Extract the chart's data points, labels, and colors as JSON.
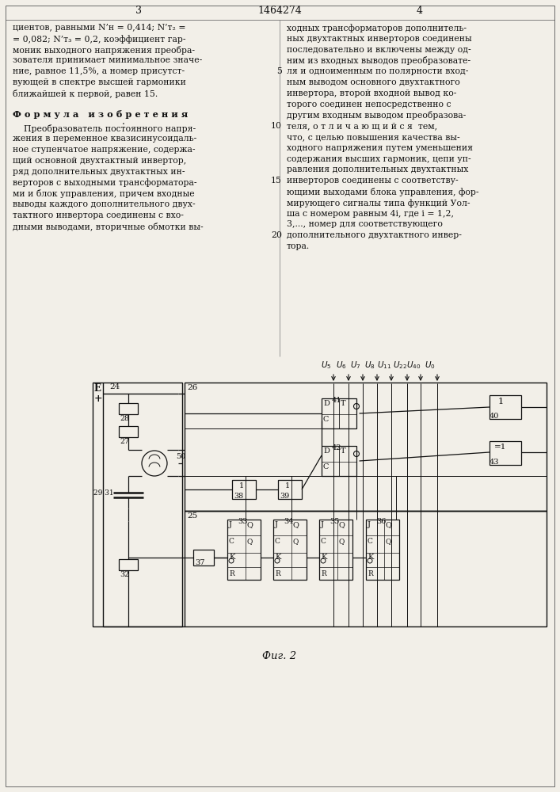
{
  "bg": "#f2efe8",
  "tc": "#111111",
  "page_num_left": "3",
  "page_num_center": "1464274",
  "page_num_right": "4",
  "col1_lines": [
    "циентов, равными N’н = 0,414; N’т₂ =",
    "= 0,082; N’т₃ = 0,2, коэффициент гар-",
    "моник выходного напряжения преобра-",
    "зователя принимает минимальное значе-",
    "ние, равное 11,5%, а номер присутст-",
    "вующей в спектре высшей гармоники",
    "ближайшей к первой, равен 15."
  ],
  "formula_title": "Ф о р м у л а   и з о б р е т е н и я",
  "col1_formula": [
    "    Преобразователь постоянного напря-",
    "жения в переменное квазисинусоидаль-",
    "ное ступенчатое напряжение, содержа-",
    "щий основной двухтактный инвертор,",
    "ряд дополнительных двухтактных ин-",
    "верторов с выходными трансформатора-",
    "ми и блок управления, причем входные",
    "выводы каждого дополнительного двух-",
    "тактного инвертора соединены с вхо-",
    "дными выводами, вторичные обмотки вы-"
  ],
  "col2_lines": [
    "ходных трансформаторов дополнитель-",
    "ных двухтактных инверторов соединены",
    "последовательно и включены между од-",
    "ним из входных выводов преобразовате-",
    "ля и одноименным по полярности вход-",
    "ным выводом основного двухтактного",
    "инвертора, второй входной вывод ко-",
    "торого соединен непосредственно с",
    "другим входным выводом преобразова-",
    "теля, о т л и ч а ю щ и й с я  тем,",
    "что, с целью повышения качества вы-",
    "ходного напряжения путем уменьшения",
    "содержания высших гармоник, цепи уп-",
    "равления дополнительных двухтактных",
    "инверторов соединены с соответству-",
    "ющими выходами блока управления, фор-",
    "мирующего сигналы типа функций Уол-",
    "ша с номером равным 4i, где i = 1,2,",
    "3,..., номер для соответствующего",
    "дополнительного двухтактного инвер-",
    "тора."
  ],
  "line_numbers": [
    [
      5,
      4
    ],
    [
      10,
      9
    ],
    [
      15,
      14
    ],
    [
      20,
      19
    ]
  ],
  "fig_caption": "Фиг. 2"
}
